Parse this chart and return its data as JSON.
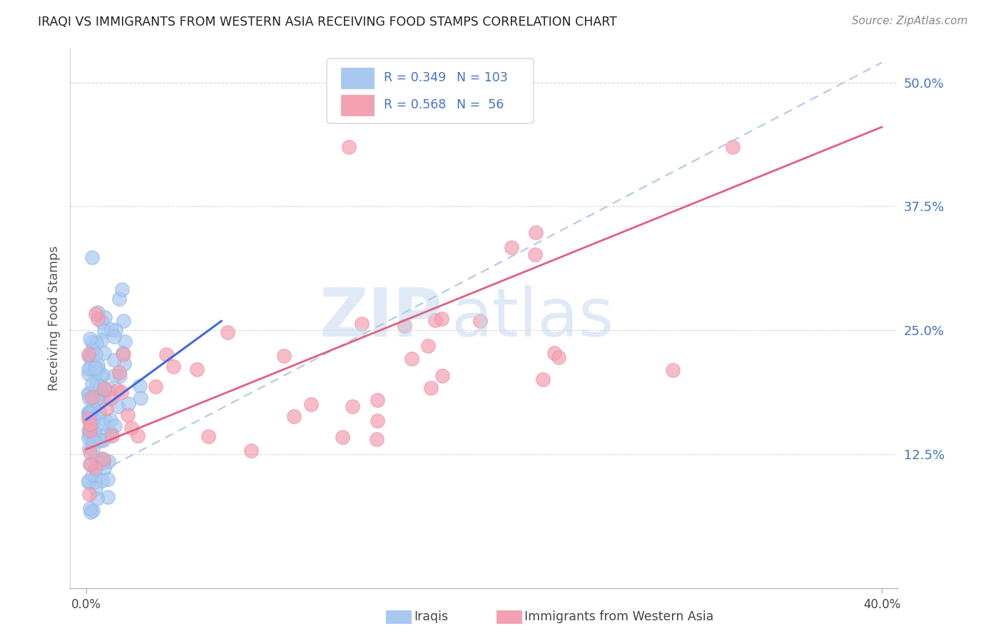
{
  "title": "IRAQI VS IMMIGRANTS FROM WESTERN ASIA RECEIVING FOOD STAMPS CORRELATION CHART",
  "source": "Source: ZipAtlas.com",
  "ylabel": "Receiving Food Stamps",
  "yticks": [
    0.125,
    0.25,
    0.375,
    0.5
  ],
  "ytick_labels": [
    "12.5%",
    "25.0%",
    "37.5%",
    "50.0%"
  ],
  "iraqis_color": "#a8c8f0",
  "immigrants_color": "#f4a0b0",
  "trend_iraqi_color": "#4169e1",
  "trend_imm_color": "#e06080",
  "dashed_line_color": "#b0c8e8",
  "watermark_zip_color": "#c8d8f0",
  "watermark_atlas_color": "#c8d8f0",
  "background_color": "#ffffff",
  "grid_color": "#d8d8d8",
  "legend_text_color": "#4472c4",
  "title_color": "#222222",
  "source_color": "#888888",
  "ylabel_color": "#555555",
  "ytick_color": "#4472c4",
  "legend_r_color": "#222222",
  "legend_val_color": "#4472c4"
}
